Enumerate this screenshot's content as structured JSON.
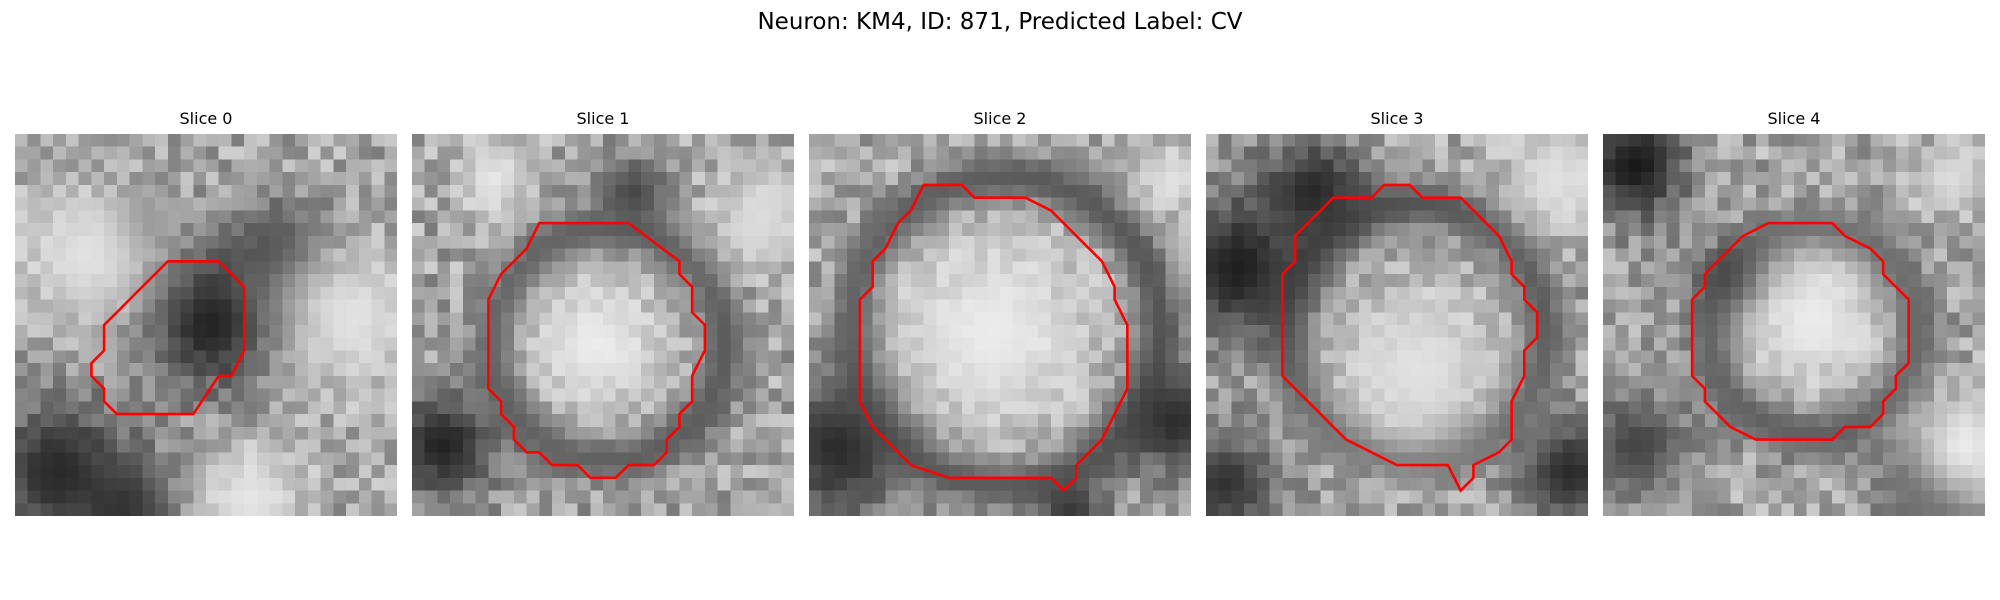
{
  "figure": {
    "title": "Neuron: KM4, ID: 871, Predicted Label: CV"
  },
  "contour_color": "#ff0000",
  "grid_size": 30,
  "slices": [
    {
      "title": "Slice 0",
      "contour": [
        [
          12,
          10
        ],
        [
          16,
          10
        ],
        [
          18,
          12
        ],
        [
          18,
          17
        ],
        [
          17,
          19
        ],
        [
          16,
          19
        ],
        [
          14,
          22
        ],
        [
          8,
          22
        ],
        [
          7,
          21
        ],
        [
          7,
          20
        ],
        [
          6,
          19
        ],
        [
          6,
          18
        ],
        [
          7,
          17
        ],
        [
          7,
          15
        ],
        [
          8,
          14
        ],
        [
          9,
          13
        ],
        [
          10,
          12
        ],
        [
          11,
          11
        ]
      ],
      "dark_spots": [
        {
          "x": 15,
          "y": 14,
          "r": 4,
          "v": 25
        },
        {
          "x": 20,
          "y": 9,
          "r": 3,
          "v": 70
        },
        {
          "x": 3,
          "y": 26,
          "r": 4,
          "v": 40
        },
        {
          "x": 8,
          "y": 29,
          "r": 3,
          "v": 50
        },
        {
          "x": 9,
          "y": 7,
          "r": 2,
          "v": 110
        }
      ],
      "bright_spots": [
        {
          "x": 5,
          "y": 9,
          "r": 4,
          "v": 225
        },
        {
          "x": 26,
          "y": 14,
          "r": 4,
          "v": 225
        },
        {
          "x": 18,
          "y": 28,
          "r": 3,
          "v": 230
        }
      ]
    },
    {
      "title": "Slice 1",
      "contour": [
        [
          10,
          7
        ],
        [
          17,
          7
        ],
        [
          21,
          10
        ],
        [
          21,
          11
        ],
        [
          22,
          12
        ],
        [
          22,
          14
        ],
        [
          23,
          15
        ],
        [
          23,
          17
        ],
        [
          22,
          19
        ],
        [
          22,
          21
        ],
        [
          21,
          22
        ],
        [
          21,
          23
        ],
        [
          20,
          24
        ],
        [
          20,
          25
        ],
        [
          19,
          26
        ],
        [
          17,
          26
        ],
        [
          16,
          27
        ],
        [
          14,
          27
        ],
        [
          13,
          26
        ],
        [
          11,
          26
        ],
        [
          10,
          25
        ],
        [
          9,
          25
        ],
        [
          8,
          24
        ],
        [
          8,
          23
        ],
        [
          7,
          22
        ],
        [
          7,
          21
        ],
        [
          6,
          20
        ],
        [
          6,
          13
        ],
        [
          7,
          11
        ],
        [
          8,
          10
        ],
        [
          9,
          9
        ]
      ],
      "dark_spots": [
        {
          "x": 15,
          "y": 16,
          "r": 9,
          "v": 85,
          "ring": true
        },
        {
          "x": 2,
          "y": 24,
          "r": 3,
          "v": 35
        },
        {
          "x": 17,
          "y": 4,
          "r": 2,
          "v": 70
        }
      ],
      "bright_spots": [
        {
          "x": 14,
          "y": 16,
          "r": 4,
          "v": 235
        },
        {
          "x": 6,
          "y": 3,
          "r": 2,
          "v": 230
        },
        {
          "x": 27,
          "y": 6,
          "r": 3,
          "v": 220
        }
      ]
    },
    {
      "title": "Slice 2",
      "contour": [
        [
          9,
          4
        ],
        [
          12,
          4
        ],
        [
          13,
          5
        ],
        [
          17,
          5
        ],
        [
          19,
          6
        ],
        [
          22,
          9
        ],
        [
          23,
          10
        ],
        [
          24,
          12
        ],
        [
          24,
          13
        ],
        [
          25,
          15
        ],
        [
          25,
          20
        ],
        [
          24,
          22
        ],
        [
          23,
          24
        ],
        [
          22,
          25
        ],
        [
          21,
          26
        ],
        [
          21,
          27
        ],
        [
          20,
          28
        ],
        [
          19,
          27
        ],
        [
          11,
          27
        ],
        [
          8,
          26
        ],
        [
          6,
          24
        ],
        [
          5,
          23
        ],
        [
          4,
          21
        ],
        [
          4,
          13
        ],
        [
          5,
          12
        ],
        [
          5,
          10
        ],
        [
          6,
          9
        ],
        [
          7,
          7
        ],
        [
          8,
          6
        ]
      ],
      "dark_spots": [
        {
          "x": 15,
          "y": 15,
          "r": 12,
          "v": 70,
          "ring": true
        },
        {
          "x": 2,
          "y": 24,
          "r": 4,
          "v": 35
        },
        {
          "x": 28,
          "y": 22,
          "r": 3,
          "v": 40
        },
        {
          "x": 20,
          "y": 29,
          "r": 2,
          "v": 50
        }
      ],
      "bright_spots": [
        {
          "x": 14,
          "y": 15,
          "r": 6,
          "v": 235
        },
        {
          "x": 28,
          "y": 3,
          "r": 2,
          "v": 225
        }
      ]
    },
    {
      "title": "Slice 3",
      "contour": [
        [
          10,
          5
        ],
        [
          13,
          5
        ],
        [
          14,
          4
        ],
        [
          16,
          4
        ],
        [
          17,
          5
        ],
        [
          20,
          5
        ],
        [
          22,
          7
        ],
        [
          23,
          8
        ],
        [
          24,
          10
        ],
        [
          24,
          11
        ],
        [
          25,
          12
        ],
        [
          25,
          13
        ],
        [
          26,
          14
        ],
        [
          26,
          16
        ],
        [
          25,
          17
        ],
        [
          25,
          19
        ],
        [
          24,
          21
        ],
        [
          24,
          24
        ],
        [
          23,
          25
        ],
        [
          21,
          26
        ],
        [
          21,
          27
        ],
        [
          20,
          28
        ],
        [
          19,
          26
        ],
        [
          15,
          26
        ],
        [
          13,
          25
        ],
        [
          11,
          24
        ],
        [
          10,
          23
        ],
        [
          9,
          22
        ],
        [
          8,
          21
        ],
        [
          7,
          20
        ],
        [
          6,
          19
        ],
        [
          6,
          18
        ],
        [
          6,
          11
        ],
        [
          7,
          10
        ],
        [
          7,
          8
        ],
        [
          8,
          7
        ],
        [
          9,
          6
        ]
      ],
      "dark_spots": [
        {
          "x": 16,
          "y": 15,
          "r": 10,
          "v": 80,
          "ring": true
        },
        {
          "x": 2,
          "y": 10,
          "r": 4,
          "v": 30
        },
        {
          "x": 8,
          "y": 4,
          "r": 3,
          "v": 40
        },
        {
          "x": 28,
          "y": 26,
          "r": 3,
          "v": 40
        },
        {
          "x": 1,
          "y": 27,
          "r": 3,
          "v": 50
        }
      ],
      "bright_spots": [
        {
          "x": 16,
          "y": 18,
          "r": 5,
          "v": 225
        },
        {
          "x": 27,
          "y": 3,
          "r": 3,
          "v": 225
        }
      ]
    },
    {
      "title": "Slice 4",
      "contour": [
        [
          13,
          7
        ],
        [
          18,
          7
        ],
        [
          19,
          8
        ],
        [
          21,
          9
        ],
        [
          22,
          10
        ],
        [
          22,
          11
        ],
        [
          23,
          12
        ],
        [
          24,
          13
        ],
        [
          24,
          18
        ],
        [
          23,
          19
        ],
        [
          23,
          20
        ],
        [
          22,
          21
        ],
        [
          22,
          22
        ],
        [
          21,
          23
        ],
        [
          19,
          23
        ],
        [
          18,
          24
        ],
        [
          12,
          24
        ],
        [
          10,
          23
        ],
        [
          9,
          22
        ],
        [
          8,
          21
        ],
        [
          8,
          20
        ],
        [
          7,
          19
        ],
        [
          7,
          13
        ],
        [
          8,
          12
        ],
        [
          8,
          11
        ],
        [
          9,
          10
        ],
        [
          10,
          9
        ],
        [
          11,
          8
        ]
      ],
      "dark_spots": [
        {
          "x": 16,
          "y": 15,
          "r": 8,
          "v": 85,
          "ring": true
        },
        {
          "x": 2,
          "y": 2,
          "r": 3,
          "v": 25
        },
        {
          "x": 10,
          "y": 11,
          "r": 2,
          "v": 40
        },
        {
          "x": 25,
          "y": 27,
          "r": 3,
          "v": 80
        },
        {
          "x": 2,
          "y": 24,
          "r": 3,
          "v": 70
        }
      ],
      "bright_spots": [
        {
          "x": 16,
          "y": 14,
          "r": 4,
          "v": 235
        },
        {
          "x": 28,
          "y": 24,
          "r": 3,
          "v": 235
        },
        {
          "x": 27,
          "y": 3,
          "r": 2,
          "v": 220
        }
      ]
    }
  ]
}
